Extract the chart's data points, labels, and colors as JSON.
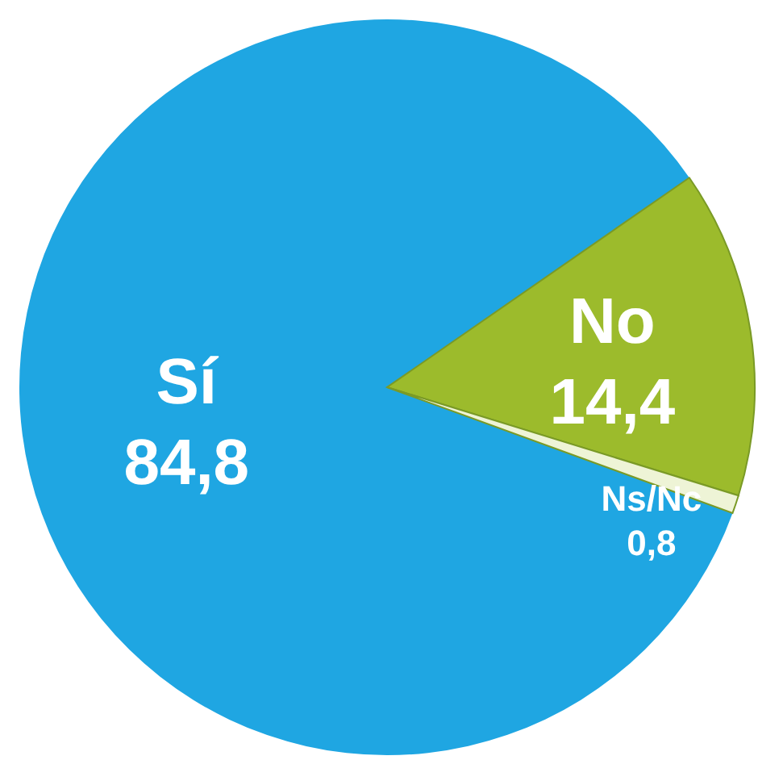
{
  "chart_data": {
    "type": "pie",
    "categories": [
      "Sí",
      "No",
      "Ns/Nc"
    ],
    "values": [
      84.8,
      14.4,
      0.8
    ],
    "value_labels": [
      "84,8",
      "14,4",
      "0,8"
    ],
    "colors": [
      "#1fa6e2",
      "#9cbb2c",
      "#eef4d6"
    ]
  }
}
